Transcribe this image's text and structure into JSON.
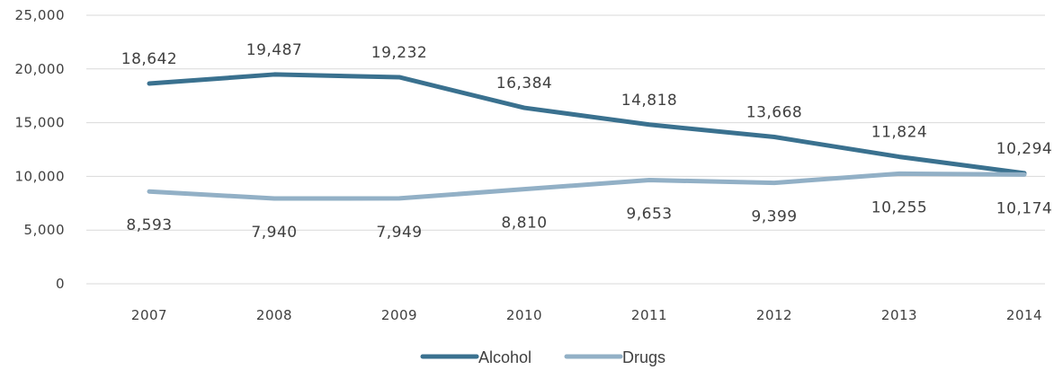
{
  "chart_data": {
    "type": "line",
    "categories": [
      "2007",
      "2008",
      "2009",
      "2010",
      "2011",
      "2012",
      "2013",
      "2014"
    ],
    "series": [
      {
        "name": "Alcohol",
        "color": "#3a718f",
        "values": [
          18642,
          19487,
          19232,
          16384,
          14818,
          13668,
          11824,
          10294
        ],
        "labels": [
          "18,642",
          "19,487",
          "19,232",
          "16,384",
          "14,818",
          "13,668",
          "11,824",
          "10,294"
        ],
        "label_placement": "above"
      },
      {
        "name": "Drugs",
        "color": "#92b0c6",
        "values": [
          8593,
          7940,
          7949,
          8810,
          9653,
          9399,
          10255,
          10174
        ],
        "labels": [
          "8,593",
          "7,940",
          "7,949",
          "8,810",
          "9,653",
          "9,399",
          "10,255",
          "10,174"
        ],
        "label_placement": "below"
      }
    ],
    "y_ticks": [
      "0",
      "5,000",
      "10,000",
      "15,000",
      "20,000",
      "25,000"
    ],
    "ylim": [
      0,
      25000
    ],
    "y_tick_step": 5000,
    "grid": true,
    "legend_position": "bottom-center",
    "title": "",
    "xlabel": "",
    "ylabel": ""
  }
}
